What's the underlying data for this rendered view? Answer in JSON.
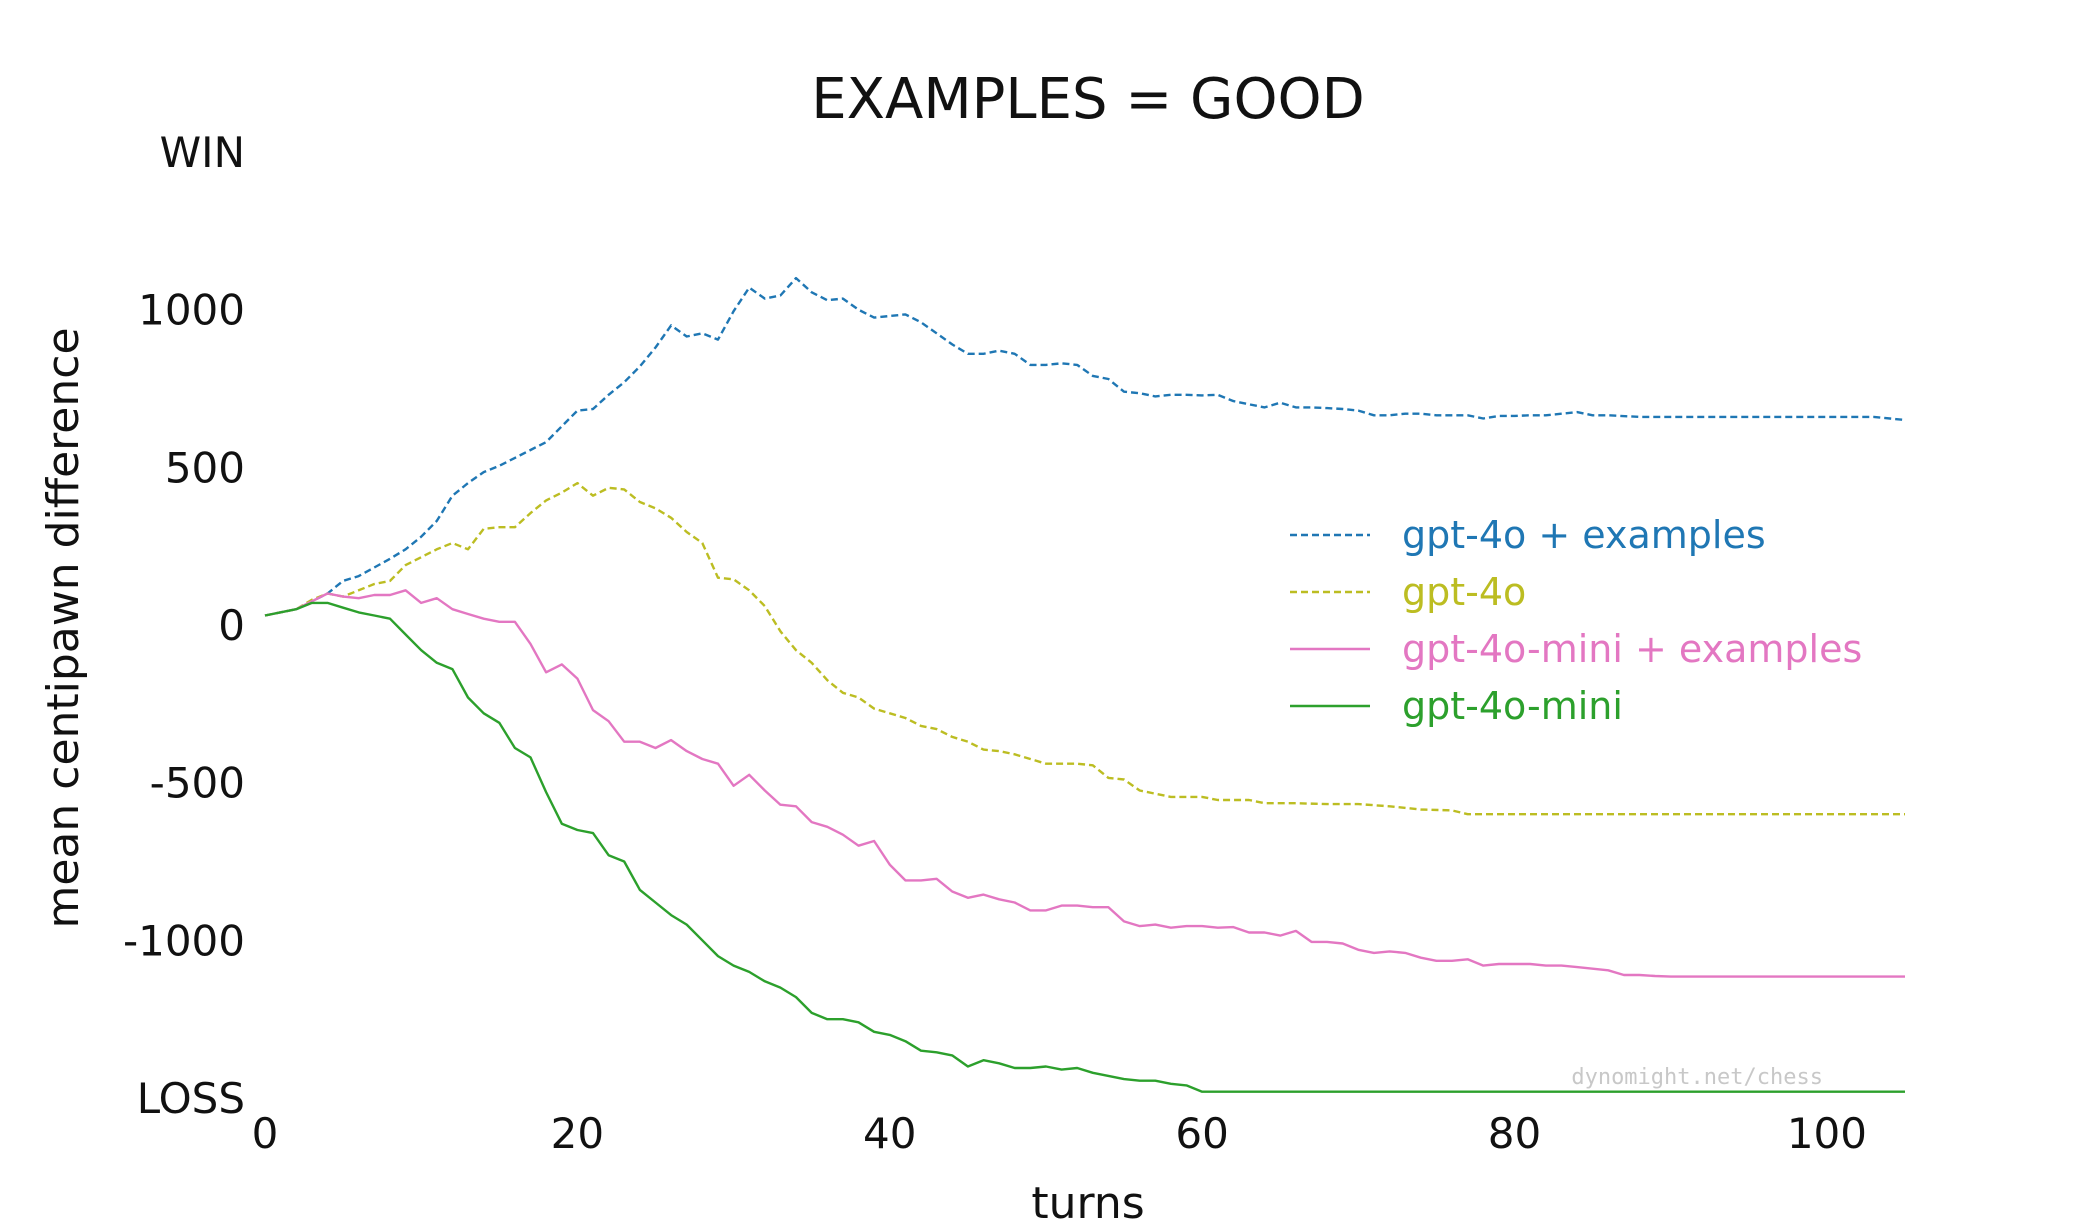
{
  "chart_data": {
    "type": "line",
    "title": "EXAMPLES = GOOD",
    "xlabel": "turns",
    "ylabel": "mean centipawn difference",
    "xlim": [
      0,
      105
    ],
    "ylim": [
      -1500,
      1500
    ],
    "x_ticks": [
      0,
      20,
      40,
      60,
      80,
      100
    ],
    "y_ticks": [
      {
        "value": 1500,
        "label": "WIN"
      },
      {
        "value": 1000,
        "label": "1000"
      },
      {
        "value": 500,
        "label": "500"
      },
      {
        "value": 0,
        "label": "0"
      },
      {
        "value": -500,
        "label": "-500"
      },
      {
        "value": -1000,
        "label": "-1000"
      },
      {
        "value": -1500,
        "label": "LOSS"
      }
    ],
    "grid": false,
    "legend_position": "right",
    "watermark": "dynomight.net/chess",
    "series": [
      {
        "name": "gpt-4o + examples",
        "color": "#1f77b4",
        "dash": true,
        "points": [
          [
            0,
            30
          ],
          [
            2,
            50
          ],
          [
            4,
            100
          ],
          [
            5,
            140
          ],
          [
            6,
            155
          ],
          [
            8,
            210
          ],
          [
            9,
            240
          ],
          [
            10,
            280
          ],
          [
            11,
            330
          ],
          [
            12,
            410
          ],
          [
            13,
            450
          ],
          [
            14,
            485
          ],
          [
            15,
            505
          ],
          [
            16,
            530
          ],
          [
            17,
            555
          ],
          [
            18,
            580
          ],
          [
            19,
            630
          ],
          [
            20,
            680
          ],
          [
            21,
            685
          ],
          [
            22,
            730
          ],
          [
            23,
            770
          ],
          [
            24,
            820
          ],
          [
            25,
            880
          ],
          [
            26,
            950
          ],
          [
            27,
            915
          ],
          [
            28,
            925
          ],
          [
            29,
            905
          ],
          [
            30,
            995
          ],
          [
            31,
            1070
          ],
          [
            32,
            1035
          ],
          [
            33,
            1045
          ],
          [
            34,
            1100
          ],
          [
            35,
            1055
          ],
          [
            36,
            1030
          ],
          [
            37,
            1035
          ],
          [
            38,
            1000
          ],
          [
            39,
            975
          ],
          [
            40,
            980
          ],
          [
            41,
            985
          ],
          [
            42,
            960
          ],
          [
            43,
            925
          ],
          [
            44,
            890
          ],
          [
            45,
            860
          ],
          [
            46,
            860
          ],
          [
            47,
            870
          ],
          [
            48,
            860
          ],
          [
            49,
            825
          ],
          [
            50,
            825
          ],
          [
            51,
            830
          ],
          [
            52,
            825
          ],
          [
            53,
            790
          ],
          [
            54,
            780
          ],
          [
            55,
            740
          ],
          [
            56,
            735
          ],
          [
            57,
            725
          ],
          [
            58,
            730
          ],
          [
            59,
            730
          ],
          [
            60,
            728
          ],
          [
            61,
            730
          ],
          [
            62,
            710
          ],
          [
            63,
            700
          ],
          [
            64,
            690
          ],
          [
            65,
            705
          ],
          [
            66,
            690
          ],
          [
            67,
            690
          ],
          [
            68,
            688
          ],
          [
            69,
            685
          ],
          [
            70,
            680
          ],
          [
            71,
            665
          ],
          [
            72,
            665
          ],
          [
            73,
            670
          ],
          [
            74,
            670
          ],
          [
            75,
            665
          ],
          [
            76,
            665
          ],
          [
            77,
            665
          ],
          [
            78,
            655
          ],
          [
            79,
            663
          ],
          [
            80,
            663
          ],
          [
            81,
            665
          ],
          [
            82,
            665
          ],
          [
            83,
            670
          ],
          [
            84,
            675
          ],
          [
            85,
            665
          ],
          [
            86,
            665
          ],
          [
            88,
            660
          ],
          [
            90,
            660
          ],
          [
            95,
            660
          ],
          [
            100,
            660
          ],
          [
            103,
            660
          ],
          [
            105,
            650
          ]
        ]
      },
      {
        "name": "gpt-4o",
        "color": "#bcbd22",
        "dash": true,
        "points": [
          [
            0,
            30
          ],
          [
            2,
            50
          ],
          [
            3,
            80
          ],
          [
            4,
            100
          ],
          [
            5,
            90
          ],
          [
            6,
            110
          ],
          [
            7,
            130
          ],
          [
            8,
            140
          ],
          [
            9,
            190
          ],
          [
            10,
            215
          ],
          [
            11,
            240
          ],
          [
            12,
            260
          ],
          [
            13,
            240
          ],
          [
            14,
            305
          ],
          [
            15,
            310
          ],
          [
            16,
            310
          ],
          [
            17,
            355
          ],
          [
            18,
            395
          ],
          [
            19,
            420
          ],
          [
            20,
            450
          ],
          [
            21,
            410
          ],
          [
            22,
            435
          ],
          [
            23,
            430
          ],
          [
            24,
            390
          ],
          [
            25,
            370
          ],
          [
            26,
            340
          ],
          [
            27,
            295
          ],
          [
            28,
            260
          ],
          [
            29,
            150
          ],
          [
            30,
            145
          ],
          [
            31,
            110
          ],
          [
            32,
            60
          ],
          [
            33,
            -20
          ],
          [
            34,
            -80
          ],
          [
            35,
            -120
          ],
          [
            36,
            -175
          ],
          [
            37,
            -215
          ],
          [
            38,
            -230
          ],
          [
            39,
            -265
          ],
          [
            40,
            -280
          ],
          [
            41,
            -295
          ],
          [
            42,
            -320
          ],
          [
            43,
            -330
          ],
          [
            44,
            -355
          ],
          [
            45,
            -370
          ],
          [
            46,
            -395
          ],
          [
            47,
            -400
          ],
          [
            48,
            -410
          ],
          [
            49,
            -425
          ],
          [
            50,
            -440
          ],
          [
            51,
            -440
          ],
          [
            52,
            -440
          ],
          [
            53,
            -445
          ],
          [
            54,
            -485
          ],
          [
            55,
            -490
          ],
          [
            56,
            -525
          ],
          [
            57,
            -535
          ],
          [
            58,
            -545
          ],
          [
            60,
            -545
          ],
          [
            61,
            -555
          ],
          [
            63,
            -555
          ],
          [
            64,
            -565
          ],
          [
            66,
            -565
          ],
          [
            68,
            -568
          ],
          [
            70,
            -568
          ],
          [
            72,
            -575
          ],
          [
            74,
            -585
          ],
          [
            76,
            -588
          ],
          [
            77,
            -600
          ],
          [
            78,
            -600
          ],
          [
            80,
            -600
          ],
          [
            90,
            -600
          ],
          [
            100,
            -600
          ],
          [
            105,
            -600
          ]
        ]
      },
      {
        "name": "gpt-4o-mini + examples",
        "color": "#e377c2",
        "dash": false,
        "points": [
          [
            0,
            30
          ],
          [
            2,
            50
          ],
          [
            4,
            100
          ],
          [
            5,
            90
          ],
          [
            6,
            85
          ],
          [
            7,
            95
          ],
          [
            8,
            95
          ],
          [
            9,
            110
          ],
          [
            10,
            70
          ],
          [
            11,
            85
          ],
          [
            12,
            50
          ],
          [
            13,
            35
          ],
          [
            14,
            20
          ],
          [
            15,
            10
          ],
          [
            16,
            10
          ],
          [
            17,
            -60
          ],
          [
            18,
            -150
          ],
          [
            19,
            -125
          ],
          [
            20,
            -170
          ],
          [
            21,
            -270
          ],
          [
            22,
            -305
          ],
          [
            23,
            -370
          ],
          [
            24,
            -370
          ],
          [
            25,
            -390
          ],
          [
            26,
            -365
          ],
          [
            27,
            -400
          ],
          [
            28,
            -425
          ],
          [
            29,
            -440
          ],
          [
            30,
            -510
          ],
          [
            31,
            -475
          ],
          [
            32,
            -525
          ],
          [
            33,
            -570
          ],
          [
            34,
            -575
          ],
          [
            35,
            -625
          ],
          [
            36,
            -640
          ],
          [
            37,
            -665
          ],
          [
            38,
            -700
          ],
          [
            39,
            -685
          ],
          [
            40,
            -760
          ],
          [
            41,
            -810
          ],
          [
            42,
            -810
          ],
          [
            43,
            -805
          ],
          [
            44,
            -845
          ],
          [
            45,
            -865
          ],
          [
            46,
            -855
          ],
          [
            47,
            -870
          ],
          [
            48,
            -880
          ],
          [
            49,
            -905
          ],
          [
            50,
            -905
          ],
          [
            51,
            -890
          ],
          [
            52,
            -890
          ],
          [
            53,
            -895
          ],
          [
            54,
            -895
          ],
          [
            55,
            -940
          ],
          [
            56,
            -955
          ],
          [
            57,
            -950
          ],
          [
            58,
            -960
          ],
          [
            59,
            -955
          ],
          [
            60,
            -955
          ],
          [
            61,
            -960
          ],
          [
            62,
            -958
          ],
          [
            63,
            -975
          ],
          [
            64,
            -975
          ],
          [
            65,
            -985
          ],
          [
            66,
            -970
          ],
          [
            67,
            -1005
          ],
          [
            68,
            -1005
          ],
          [
            69,
            -1010
          ],
          [
            70,
            -1030
          ],
          [
            71,
            -1040
          ],
          [
            72,
            -1035
          ],
          [
            73,
            -1040
          ],
          [
            74,
            -1055
          ],
          [
            75,
            -1065
          ],
          [
            76,
            -1065
          ],
          [
            77,
            -1060
          ],
          [
            78,
            -1080
          ],
          [
            79,
            -1075
          ],
          [
            80,
            -1075
          ],
          [
            81,
            -1075
          ],
          [
            82,
            -1080
          ],
          [
            83,
            -1080
          ],
          [
            84,
            -1085
          ],
          [
            85,
            -1090
          ],
          [
            86,
            -1095
          ],
          [
            87,
            -1110
          ],
          [
            88,
            -1110
          ],
          [
            89,
            -1113
          ],
          [
            90,
            -1115
          ],
          [
            100,
            -1115
          ],
          [
            105,
            -1115
          ]
        ]
      },
      {
        "name": "gpt-4o-mini",
        "color": "#2ca02c",
        "dash": false,
        "points": [
          [
            0,
            30
          ],
          [
            2,
            50
          ],
          [
            3,
            70
          ],
          [
            4,
            70
          ],
          [
            5,
            55
          ],
          [
            6,
            40
          ],
          [
            7,
            30
          ],
          [
            8,
            20
          ],
          [
            9,
            -30
          ],
          [
            10,
            -80
          ],
          [
            11,
            -120
          ],
          [
            12,
            -140
          ],
          [
            13,
            -230
          ],
          [
            14,
            -280
          ],
          [
            15,
            -310
          ],
          [
            16,
            -390
          ],
          [
            17,
            -420
          ],
          [
            18,
            -530
          ],
          [
            19,
            -630
          ],
          [
            20,
            -650
          ],
          [
            21,
            -660
          ],
          [
            22,
            -730
          ],
          [
            23,
            -750
          ],
          [
            24,
            -840
          ],
          [
            25,
            -880
          ],
          [
            26,
            -920
          ],
          [
            27,
            -950
          ],
          [
            28,
            -1000
          ],
          [
            29,
            -1050
          ],
          [
            30,
            -1080
          ],
          [
            31,
            -1100
          ],
          [
            32,
            -1130
          ],
          [
            33,
            -1150
          ],
          [
            34,
            -1180
          ],
          [
            35,
            -1230
          ],
          [
            36,
            -1250
          ],
          [
            37,
            -1250
          ],
          [
            38,
            -1260
          ],
          [
            39,
            -1290
          ],
          [
            40,
            -1300
          ],
          [
            41,
            -1320
          ],
          [
            42,
            -1350
          ],
          [
            43,
            -1355
          ],
          [
            44,
            -1365
          ],
          [
            45,
            -1400
          ],
          [
            46,
            -1380
          ],
          [
            47,
            -1390
          ],
          [
            48,
            -1405
          ],
          [
            49,
            -1405
          ],
          [
            50,
            -1400
          ],
          [
            51,
            -1410
          ],
          [
            52,
            -1405
          ],
          [
            53,
            -1420
          ],
          [
            54,
            -1430
          ],
          [
            55,
            -1440
          ],
          [
            56,
            -1445
          ],
          [
            57,
            -1445
          ],
          [
            58,
            -1455
          ],
          [
            59,
            -1460
          ],
          [
            60,
            -1480
          ],
          [
            65,
            -1480
          ],
          [
            70,
            -1480
          ],
          [
            80,
            -1480
          ],
          [
            90,
            -1480
          ],
          [
            100,
            -1480
          ],
          [
            105,
            -1480
          ]
        ]
      }
    ]
  }
}
